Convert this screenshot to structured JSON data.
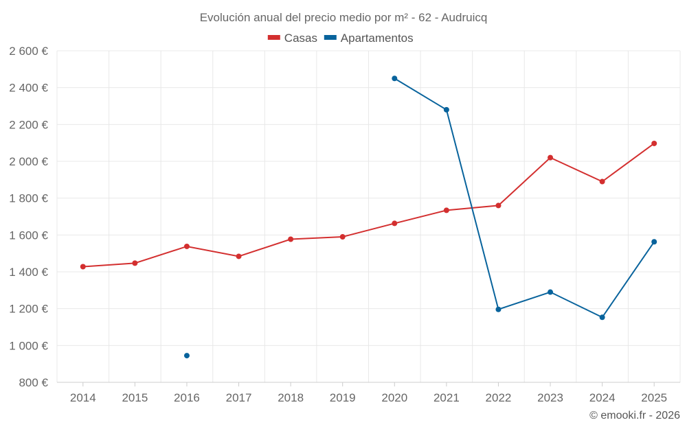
{
  "chart_data": {
    "type": "line",
    "title": "Evolución anual del precio medio por m² - 62 - Audruicq",
    "credit": "© emooki.fr - 2026",
    "x": [
      "2014",
      "2015",
      "2016",
      "2017",
      "2018",
      "2019",
      "2020",
      "2021",
      "2022",
      "2023",
      "2024",
      "2025"
    ],
    "ylim": [
      800,
      2600
    ],
    "yticks": [
      800,
      1000,
      1200,
      1400,
      1600,
      1800,
      2000,
      2200,
      2400,
      2600
    ],
    "ytick_labels": [
      "800 €",
      "1 000 €",
      "1 200 €",
      "1 400 €",
      "1 600 €",
      "1 800 €",
      "2 000 €",
      "2 200 €",
      "2 400 €",
      "2 600 €"
    ],
    "legend_position": "top-center",
    "series": [
      {
        "name": "Casas",
        "color": "#d32f2f",
        "values": [
          1428,
          1447,
          1538,
          1484,
          1577,
          1590,
          1663,
          1734,
          1760,
          2020,
          1890,
          2097
        ]
      },
      {
        "name": "Apartamentos",
        "color": "#08639c",
        "values": [
          null,
          null,
          945,
          null,
          null,
          null,
          2450,
          2280,
          1196,
          1290,
          1153,
          1563
        ]
      }
    ]
  }
}
